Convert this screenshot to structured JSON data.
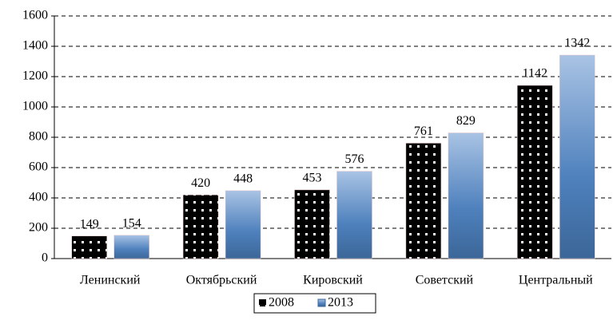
{
  "chart_data": {
    "type": "bar",
    "categories": [
      "Ленинский",
      "Октябрьский",
      "Кировский",
      "Советский",
      "Центральный"
    ],
    "series": [
      {
        "name": "2008",
        "color": "#000000",
        "values": [
          149,
          420,
          453,
          761,
          1142
        ]
      },
      {
        "name": "2013",
        "color": "#4f81bd",
        "values": [
          154,
          448,
          576,
          829,
          1342
        ]
      }
    ],
    "ylim": [
      0,
      1600
    ],
    "yticks": [
      0,
      200,
      400,
      600,
      800,
      1000,
      1200,
      1400,
      1600
    ],
    "grid": true,
    "legend": "bottom"
  }
}
